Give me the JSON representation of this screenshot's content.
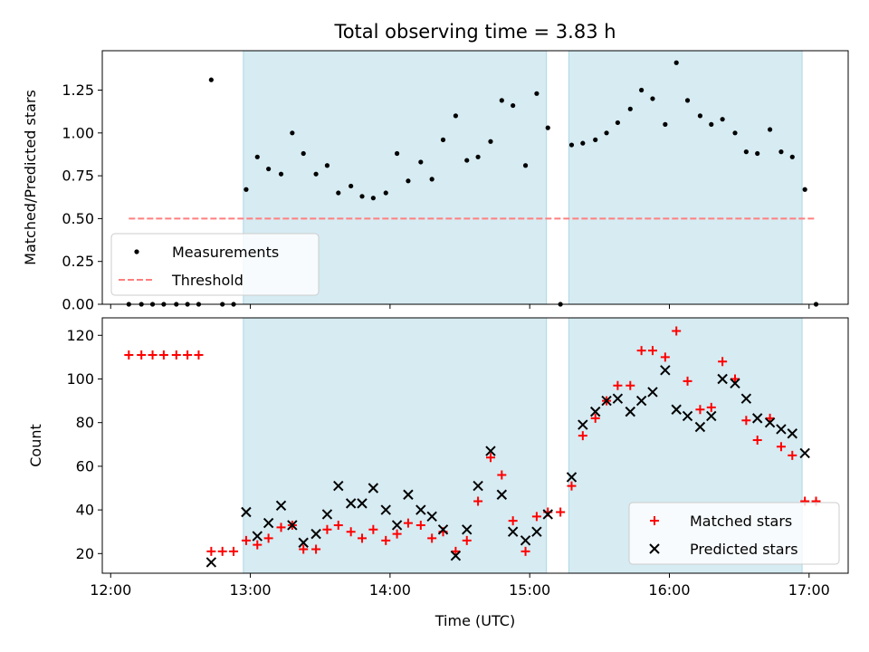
{
  "chart_data": [
    {
      "type": "scatter",
      "title": "Total observing time = 3.83 h",
      "xlabel": "",
      "ylabel": "Matched/Predicted stars",
      "xlim": [
        11.94,
        17.28
      ],
      "ylim": [
        0,
        1.48
      ],
      "yticks": [
        0.0,
        0.25,
        0.5,
        0.75,
        1.0,
        1.25
      ],
      "ytick_labels": [
        "0.00",
        "0.25",
        "0.50",
        "0.75",
        "1.00",
        "1.25"
      ],
      "shaded_intervals": [
        [
          12.95,
          15.12
        ],
        [
          15.28,
          16.95
        ]
      ],
      "shade_color": "#add8e6",
      "legend": {
        "position": "lower-left",
        "entries": [
          "Measurements",
          "Threshold"
        ]
      },
      "series": [
        {
          "name": "Measurements",
          "marker": "dot",
          "color": "#000000",
          "points": [
            [
              12.13,
              0
            ],
            [
              12.22,
              0
            ],
            [
              12.3,
              0
            ],
            [
              12.38,
              0
            ],
            [
              12.47,
              0
            ],
            [
              12.55,
              0
            ],
            [
              12.63,
              0
            ],
            [
              12.72,
              1.31
            ],
            [
              12.8,
              0
            ],
            [
              12.88,
              0
            ],
            [
              12.97,
              0.67
            ],
            [
              13.05,
              0.86
            ],
            [
              13.13,
              0.79
            ],
            [
              13.22,
              0.76
            ],
            [
              13.3,
              1.0
            ],
            [
              13.38,
              0.88
            ],
            [
              13.47,
              0.76
            ],
            [
              13.55,
              0.81
            ],
            [
              13.63,
              0.65
            ],
            [
              13.72,
              0.69
            ],
            [
              13.8,
              0.63
            ],
            [
              13.88,
              0.62
            ],
            [
              13.97,
              0.65
            ],
            [
              14.05,
              0.88
            ],
            [
              14.13,
              0.72
            ],
            [
              14.22,
              0.83
            ],
            [
              14.3,
              0.73
            ],
            [
              14.38,
              0.96
            ],
            [
              14.47,
              1.1
            ],
            [
              14.55,
              0.84
            ],
            [
              14.63,
              0.86
            ],
            [
              14.72,
              0.95
            ],
            [
              14.8,
              1.19
            ],
            [
              14.88,
              1.16
            ],
            [
              14.97,
              0.81
            ],
            [
              15.05,
              1.23
            ],
            [
              15.13,
              1.03
            ],
            [
              15.22,
              0
            ],
            [
              15.3,
              0.93
            ],
            [
              15.38,
              0.94
            ],
            [
              15.47,
              0.96
            ],
            [
              15.55,
              1.0
            ],
            [
              15.63,
              1.06
            ],
            [
              15.72,
              1.14
            ],
            [
              15.8,
              1.25
            ],
            [
              15.88,
              1.2
            ],
            [
              15.97,
              1.05
            ],
            [
              16.05,
              1.41
            ],
            [
              16.13,
              1.19
            ],
            [
              16.22,
              1.1
            ],
            [
              16.3,
              1.05
            ],
            [
              16.38,
              1.08
            ],
            [
              16.47,
              1.0
            ],
            [
              16.55,
              0.89
            ],
            [
              16.63,
              0.88
            ],
            [
              16.72,
              1.02
            ],
            [
              16.8,
              0.89
            ],
            [
              16.88,
              0.86
            ],
            [
              16.97,
              0.67
            ],
            [
              17.05,
              0
            ]
          ]
        },
        {
          "name": "Threshold",
          "marker": "dashed-line",
          "color": "#ff7f7f",
          "points": [
            [
              12.13,
              0.5
            ],
            [
              17.05,
              0.5
            ]
          ]
        }
      ]
    },
    {
      "type": "scatter",
      "title": "",
      "xlabel": "Time (UTC)",
      "ylabel": "Count",
      "xlim": [
        11.94,
        17.28
      ],
      "ylim": [
        11,
        128
      ],
      "yticks": [
        20,
        40,
        60,
        80,
        100,
        120
      ],
      "ytick_labels": [
        "20",
        "40",
        "60",
        "80",
        "100",
        "120"
      ],
      "xticks": [
        12,
        13,
        14,
        15,
        16,
        17
      ],
      "xtick_labels": [
        "12:00",
        "13:00",
        "14:00",
        "15:00",
        "16:00",
        "17:00"
      ],
      "shaded_intervals": [
        [
          12.95,
          15.12
        ],
        [
          15.28,
          16.95
        ]
      ],
      "shade_color": "#add8e6",
      "legend": {
        "position": "lower-right",
        "entries": [
          "Matched stars",
          "Predicted stars"
        ]
      },
      "series": [
        {
          "name": "Matched stars",
          "marker": "plus",
          "color": "#ff0000",
          "points": [
            [
              12.13,
              111
            ],
            [
              12.22,
              111
            ],
            [
              12.3,
              111
            ],
            [
              12.38,
              111
            ],
            [
              12.47,
              111
            ],
            [
              12.55,
              111
            ],
            [
              12.63,
              111
            ],
            [
              12.72,
              21
            ],
            [
              12.8,
              21
            ],
            [
              12.88,
              21
            ],
            [
              12.97,
              26
            ],
            [
              13.05,
              24
            ],
            [
              13.13,
              27
            ],
            [
              13.22,
              32
            ],
            [
              13.3,
              33
            ],
            [
              13.38,
              22
            ],
            [
              13.47,
              22
            ],
            [
              13.55,
              31
            ],
            [
              13.63,
              33
            ],
            [
              13.72,
              30
            ],
            [
              13.8,
              27
            ],
            [
              13.88,
              31
            ],
            [
              13.97,
              26
            ],
            [
              14.05,
              29
            ],
            [
              14.13,
              34
            ],
            [
              14.22,
              33
            ],
            [
              14.3,
              27
            ],
            [
              14.38,
              30
            ],
            [
              14.47,
              21
            ],
            [
              14.55,
              26
            ],
            [
              14.63,
              44
            ],
            [
              14.72,
              64
            ],
            [
              14.8,
              56
            ],
            [
              14.88,
              35
            ],
            [
              14.97,
              21
            ],
            [
              15.05,
              37
            ],
            [
              15.13,
              39
            ],
            [
              15.22,
              39
            ],
            [
              15.3,
              51
            ],
            [
              15.38,
              74
            ],
            [
              15.47,
              82
            ],
            [
              15.55,
              90
            ],
            [
              15.63,
              97
            ],
            [
              15.72,
              97
            ],
            [
              15.8,
              113
            ],
            [
              15.88,
              113
            ],
            [
              15.97,
              110
            ],
            [
              16.05,
              122
            ],
            [
              16.13,
              99
            ],
            [
              16.22,
              86
            ],
            [
              16.3,
              87
            ],
            [
              16.38,
              108
            ],
            [
              16.47,
              100
            ],
            [
              16.55,
              81
            ],
            [
              16.63,
              72
            ],
            [
              16.72,
              82
            ],
            [
              16.8,
              69
            ],
            [
              16.88,
              65
            ],
            [
              16.97,
              44
            ],
            [
              17.05,
              44
            ]
          ]
        },
        {
          "name": "Predicted stars",
          "marker": "x",
          "color": "#000000",
          "points": [
            [
              12.72,
              16
            ],
            [
              12.97,
              39
            ],
            [
              13.05,
              28
            ],
            [
              13.13,
              34
            ],
            [
              13.22,
              42
            ],
            [
              13.3,
              33
            ],
            [
              13.38,
              25
            ],
            [
              13.47,
              29
            ],
            [
              13.55,
              38
            ],
            [
              13.63,
              51
            ],
            [
              13.72,
              43
            ],
            [
              13.8,
              43
            ],
            [
              13.88,
              50
            ],
            [
              13.97,
              40
            ],
            [
              14.05,
              33
            ],
            [
              14.13,
              47
            ],
            [
              14.22,
              40
            ],
            [
              14.3,
              37
            ],
            [
              14.38,
              31
            ],
            [
              14.47,
              19
            ],
            [
              14.55,
              31
            ],
            [
              14.63,
              51
            ],
            [
              14.72,
              67
            ],
            [
              14.8,
              47
            ],
            [
              14.88,
              30
            ],
            [
              14.97,
              26
            ],
            [
              15.05,
              30
            ],
            [
              15.13,
              38
            ],
            [
              15.3,
              55
            ],
            [
              15.38,
              79
            ],
            [
              15.47,
              85
            ],
            [
              15.55,
              90
            ],
            [
              15.63,
              91
            ],
            [
              15.72,
              85
            ],
            [
              15.8,
              90
            ],
            [
              15.88,
              94
            ],
            [
              15.97,
              104
            ],
            [
              16.05,
              86
            ],
            [
              16.13,
              83
            ],
            [
              16.22,
              78
            ],
            [
              16.3,
              83
            ],
            [
              16.38,
              100
            ],
            [
              16.47,
              98
            ],
            [
              16.55,
              91
            ],
            [
              16.63,
              82
            ],
            [
              16.72,
              80
            ],
            [
              16.8,
              77
            ],
            [
              16.88,
              75
            ],
            [
              16.97,
              66
            ]
          ]
        }
      ]
    }
  ]
}
